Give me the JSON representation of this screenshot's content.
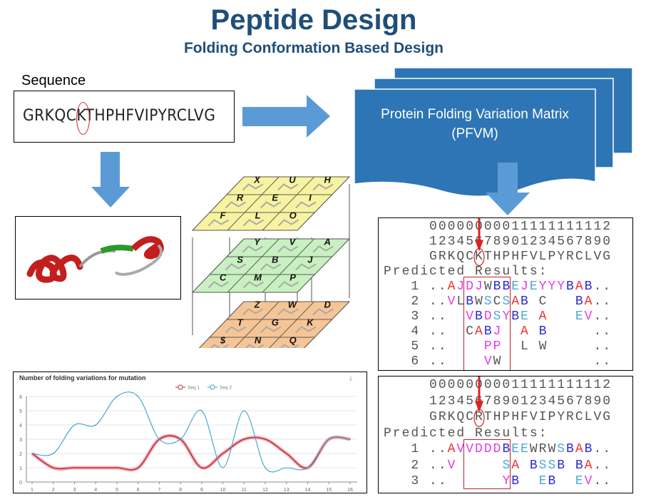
{
  "header": {
    "title": "Peptide Design",
    "subtitle": "Folding Conformation Based Design"
  },
  "sequence": {
    "label": "Sequence",
    "value": "GRKQCKTHPHFVIPYRCLVG",
    "highlighted_position": 6
  },
  "pfvm": {
    "line1": "Protein Folding Variation Matrix",
    "line2": "(PFVM)"
  },
  "cube": {
    "layers": [
      {
        "name": "top",
        "color": "#f7f3a0",
        "letters": [
          "X",
          "U",
          "H",
          "R",
          "E",
          "I",
          "F",
          "L",
          "O"
        ]
      },
      {
        "name": "middle",
        "color": "#c8f0c0",
        "letters": [
          "Y",
          "V",
          "A",
          "S",
          "B",
          "J",
          "C",
          "M",
          "P"
        ]
      },
      {
        "name": "bottom",
        "color": "#f6c596",
        "letters": [
          "Z",
          "W",
          "D",
          "T",
          "G",
          "K",
          "$",
          "N",
          "Q"
        ]
      }
    ]
  },
  "results": [
    {
      "header_tens": "00000000011111111112",
      "header_ones": "12345678901234567890",
      "sequence": "GRKQCKTHPHFVLPYRCLVG",
      "label": "Predicted Results:",
      "rows": [
        {
          "num": "1",
          "text": "..AJDJWBBEJEYYYBAB..",
          "colors": "kkrmmmkbbcmcmmmbrbkk"
        },
        {
          "num": "2",
          "text": "..VLBWSCSAB C   BA..",
          "colors": "kkmkbkckcrbkkkkkbrkk"
        },
        {
          "num": "3",
          "text": "..  VBDSYBE A   EV..",
          "colors": "kkkkmbmcmbckrkkkcmkk"
        },
        {
          "num": "4",
          "text": "..  CABJ  A B     ..",
          "colors": "kkkkkrbmkkrkbkkkkkkk"
        },
        {
          "num": "5",
          "text": "..    PP  L W     ..",
          "colors": "kkkkkkmmkkkkkkkkkkkk"
        },
        {
          "num": "6",
          "text": "..    VW          ..",
          "colors": "kkkkkkmkkkkkkkkkkkkk"
        }
      ]
    },
    {
      "header_tens": "00000000011111111112",
      "header_ones": "12345678901234567890",
      "sequence": "GRKQCRTHPHFVIPYRCLVG",
      "label": "Predicted Results:",
      "rows": [
        {
          "num": "1",
          "text": "..AVVDDDBEEWRWSBAB..",
          "colors": "kkrmmmmmbcckkkcbrbkk"
        },
        {
          "num": "2",
          "text": "..V     SA BSSB BA..",
          "colors": "kkmkkkkkcrkbccbkbrkk"
        },
        {
          "num": "3",
          "text": "..      YB  EB  EV..",
          "colors": "kkkkkkkkmbkkcbkkcmkk"
        }
      ]
    }
  ],
  "colors": {
    "title": "#1f4e79",
    "arrow": "#5b9bd5",
    "doc": "#2e75b6",
    "highlight": "#d02020"
  },
  "chart_data": {
    "type": "line",
    "title": "Number of folding variations for mutation",
    "x": [
      1,
      2,
      3,
      4,
      5,
      6,
      7,
      8,
      9,
      10,
      11,
      12,
      13,
      14,
      15,
      16
    ],
    "series": [
      {
        "name": "Seq 1",
        "color": "#c0303a",
        "values": [
          2,
          1,
          1,
          1,
          1,
          1,
          3,
          3,
          1,
          2,
          3,
          3,
          2,
          1,
          3,
          3
        ]
      },
      {
        "name": "Seq 2",
        "color": "#3a9fd0",
        "values": [
          2,
          2,
          4,
          4,
          6,
          6,
          3,
          3,
          5,
          1,
          5,
          1,
          1,
          1,
          3,
          3
        ]
      }
    ],
    "ylim": [
      0,
      6
    ],
    "yticks": [
      0,
      1,
      2,
      3,
      4,
      5,
      6
    ],
    "grid": true,
    "legend": "top-center",
    "xlabel": "",
    "ylabel": ""
  }
}
